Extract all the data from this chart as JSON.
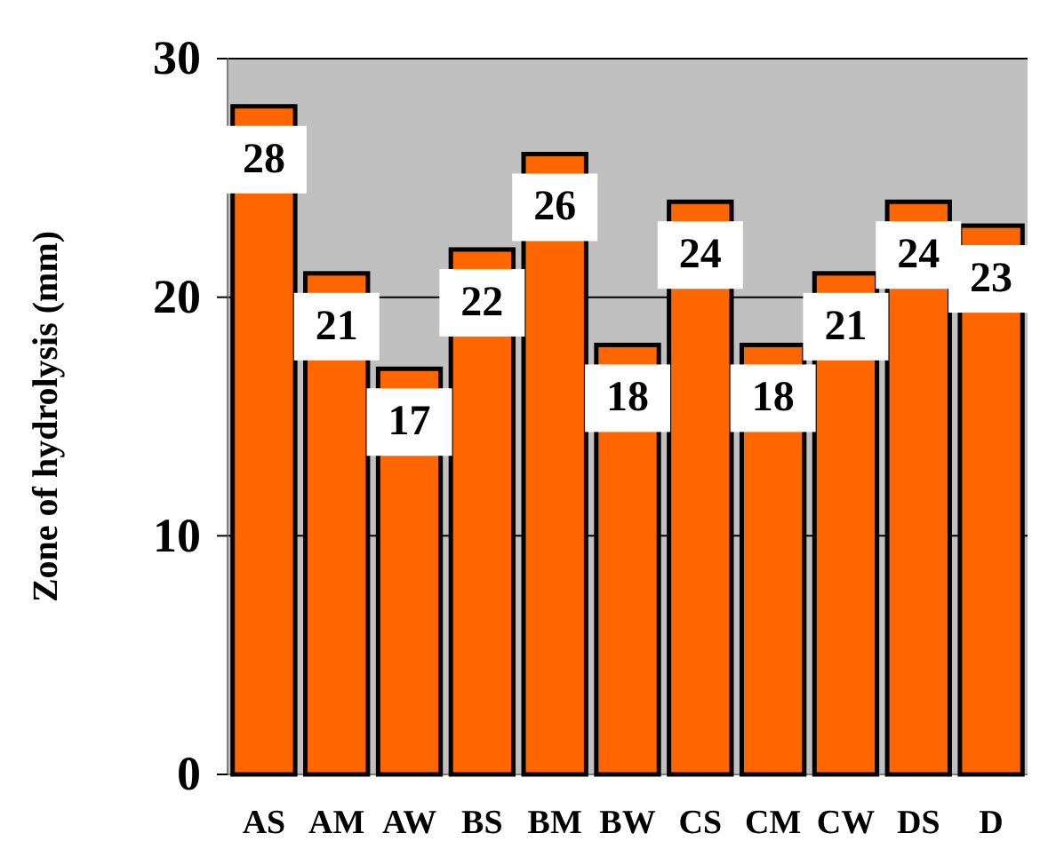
{
  "chart_data": {
    "type": "bar",
    "ylabel": "Zone of hydrolysis (mm)",
    "categories": [
      "AS",
      "AM",
      "AW",
      "BS",
      "BM",
      "BW",
      "CS",
      "CM",
      "CW",
      "DS",
      "D"
    ],
    "values": [
      28,
      21,
      17,
      22,
      26,
      18,
      24,
      18,
      21,
      24,
      23
    ],
    "color": "#ff6600",
    "data_labels": true,
    "ylim": [
      0,
      30
    ],
    "yticks": [
      0,
      10,
      20,
      30
    ],
    "grid": "y"
  }
}
